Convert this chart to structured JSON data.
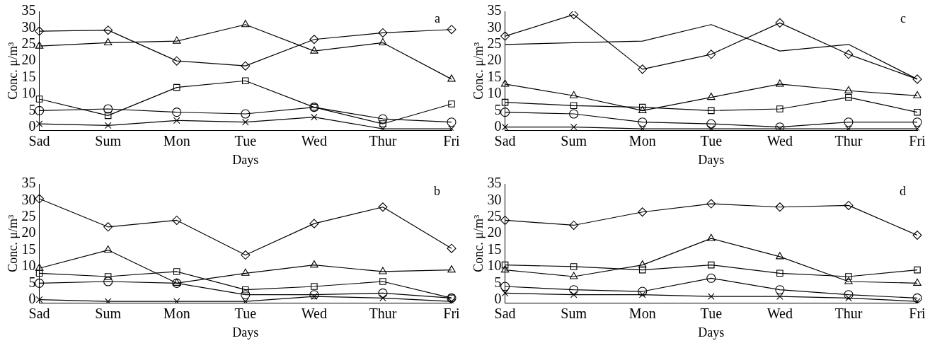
{
  "chart_data": [
    {
      "type": "line",
      "title": "a",
      "xlabel": "Days",
      "ylabel": "Conc. μ/m³",
      "categories": [
        "Sad",
        "Sum",
        "Mon",
        "Tue",
        "Wed",
        "Thur",
        "Fri"
      ],
      "ylim": [
        -1,
        35
      ],
      "yticks": [
        0,
        5,
        10,
        15,
        20,
        25,
        30,
        35
      ],
      "grid": false,
      "legend": false,
      "series": [
        {
          "color": "#000000",
          "marker": "diamond",
          "values": [
            29,
            29.3,
            20,
            18.5,
            26.5,
            28.5,
            29.5
          ]
        },
        {
          "color": "#000000",
          "marker": "triangle",
          "values": [
            24.5,
            25.5,
            26,
            31,
            23,
            25.5,
            14.5
          ]
        },
        {
          "color": "#000000",
          "marker": "square",
          "values": [
            8.5,
            3.5,
            12,
            14,
            6,
            1,
            7
          ]
        },
        {
          "color": "#000000",
          "marker": "circle",
          "values": [
            5,
            5.5,
            4.5,
            4,
            6,
            2.5,
            1.5
          ]
        },
        {
          "color": "#000000",
          "marker": "cross",
          "values": [
            1,
            0.5,
            2,
            1.5,
            3,
            -0.5,
            -0.5
          ]
        }
      ]
    },
    {
      "type": "line",
      "title": "c",
      "xlabel": "Days",
      "ylabel": "Conc. μ/m³",
      "categories": [
        "Sad",
        "Sum",
        "Mon",
        "Tue",
        "Wed",
        "Thur",
        "Fri"
      ],
      "ylim": [
        -1,
        35
      ],
      "yticks": [
        0,
        5,
        10,
        15,
        20,
        25,
        30,
        35
      ],
      "grid": false,
      "legend": false,
      "series": [
        {
          "color": "#000000",
          "marker": "diamond",
          "values": [
            27.5,
            34,
            17.5,
            22,
            31.5,
            22,
            14.5
          ]
        },
        {
          "color": "#000000",
          "marker": "none",
          "values": [
            25,
            25.5,
            26,
            31,
            23,
            25,
            14.5
          ]
        },
        {
          "color": "#000000",
          "marker": "triangle",
          "values": [
            13,
            9.5,
            5,
            9,
            13,
            11,
            9.5
          ]
        },
        {
          "color": "#000000",
          "marker": "square",
          "values": [
            7.5,
            6.5,
            6,
            5,
            5.5,
            9,
            4.5
          ]
        },
        {
          "color": "#000000",
          "marker": "circle",
          "values": [
            4.5,
            4,
            1.5,
            1,
            0,
            1.5,
            1.5
          ]
        },
        {
          "color": "#000000",
          "marker": "cross",
          "values": [
            0,
            0,
            -0.5,
            -0.5,
            -0.5,
            -0.5,
            -0.5
          ]
        }
      ]
    },
    {
      "type": "line",
      "title": "b",
      "xlabel": "Days",
      "ylabel": "Conc. μ/m³",
      "categories": [
        "Sad",
        "Sum",
        "Mon",
        "Tue",
        "Wed",
        "Thur",
        "Fri"
      ],
      "ylim": [
        -1,
        35
      ],
      "yticks": [
        0,
        5,
        10,
        15,
        20,
        25,
        30,
        35
      ],
      "grid": false,
      "legend": false,
      "series": [
        {
          "color": "#000000",
          "marker": "diamond",
          "values": [
            30.5,
            22,
            24,
            13.5,
            23,
            28,
            15.5
          ]
        },
        {
          "color": "#000000",
          "marker": "triangle",
          "values": [
            9.5,
            15,
            5,
            8,
            10.5,
            8.5,
            9
          ]
        },
        {
          "color": "#000000",
          "marker": "square",
          "values": [
            8,
            7,
            8.5,
            3,
            4,
            5.5,
            0.5
          ]
        },
        {
          "color": "#000000",
          "marker": "circle",
          "values": [
            5,
            5.5,
            5,
            1.5,
            1.5,
            2,
            0.5
          ]
        },
        {
          "color": "#000000",
          "marker": "cross",
          "values": [
            0,
            -0.5,
            -0.5,
            -0.5,
            1,
            0.5,
            -0.5
          ]
        }
      ]
    },
    {
      "type": "line",
      "title": "d",
      "xlabel": "Days",
      "ylabel": "Conc. μ/m³",
      "categories": [
        "Sad",
        "Sum",
        "Mon",
        "Tue",
        "Wed",
        "Thur",
        "Fri"
      ],
      "ylim": [
        -1,
        35
      ],
      "yticks": [
        0,
        5,
        10,
        15,
        20,
        25,
        30,
        35
      ],
      "grid": false,
      "legend": false,
      "series": [
        {
          "color": "#000000",
          "marker": "diamond",
          "values": [
            24,
            22.5,
            26.5,
            29,
            28,
            28.5,
            19.5
          ]
        },
        {
          "color": "#000000",
          "marker": "triangle",
          "values": [
            9,
            7,
            10.5,
            18.5,
            13,
            5.5,
            5
          ]
        },
        {
          "color": "#000000",
          "marker": "square",
          "values": [
            10.5,
            10,
            9,
            10.5,
            8,
            7,
            9
          ]
        },
        {
          "color": "#000000",
          "marker": "circle",
          "values": [
            4,
            3,
            2.5,
            6.5,
            3,
            1.5,
            0.5
          ]
        },
        {
          "color": "#000000",
          "marker": "cross",
          "values": [
            2,
            1.5,
            1.5,
            1,
            1,
            0.5,
            -0.5
          ]
        }
      ]
    }
  ]
}
